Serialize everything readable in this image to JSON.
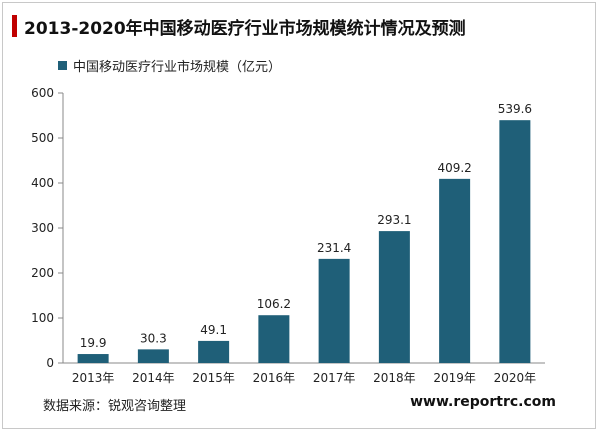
{
  "title": "2013-2020年中国移动医疗行业市场规模统计情况及预测",
  "source": "数据来源：锐观咨询整理",
  "website": "www.reportrc.com",
  "colors": {
    "bar": "#1f5f78",
    "title_accent": "#c00000",
    "axis": "#888888",
    "text": "#222222"
  },
  "chart_data": {
    "type": "bar",
    "categories": [
      "2013年",
      "2014年",
      "2015年",
      "2016年",
      "2017年",
      "2018年",
      "2019年",
      "2020年"
    ],
    "series": [
      {
        "name": "中国移动医疗行业市场规模（亿元）",
        "values": [
          19.9,
          30.3,
          49.1,
          106.2,
          231.4,
          293.1,
          409.2,
          539.6
        ]
      }
    ],
    "value_labels": [
      "19.9",
      "30.3",
      "49.1",
      "106.2",
      "231.4",
      "293.1",
      "409.2",
      "539.6"
    ],
    "ylim": [
      0,
      600
    ],
    "yticks": [
      0,
      100,
      200,
      300,
      400,
      500,
      600
    ],
    "ytick_labels": [
      "0",
      "100",
      "200",
      "300",
      "400",
      "500",
      "600"
    ],
    "grid": false,
    "legend_position": "top-left"
  }
}
